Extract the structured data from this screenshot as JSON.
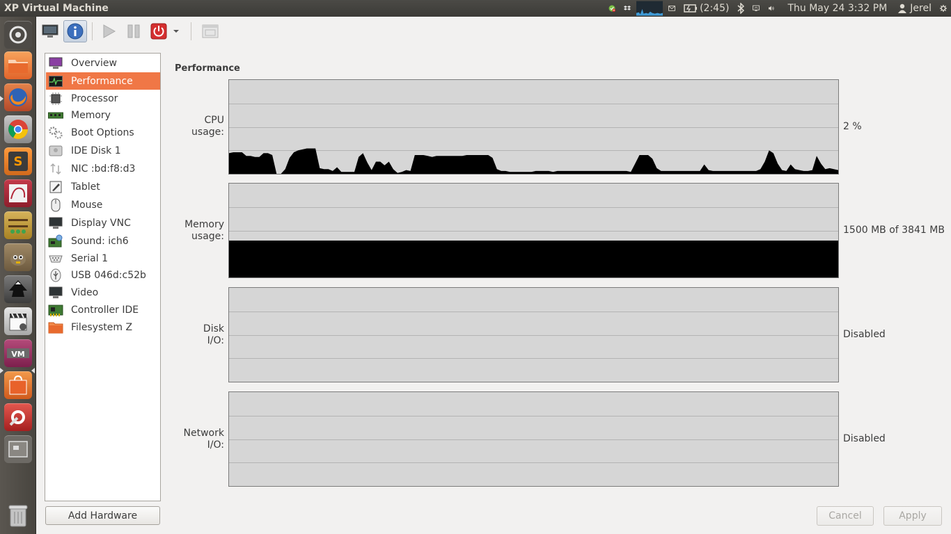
{
  "window": {
    "title": "XP Virtual Machine"
  },
  "panel": {
    "battery_text": "(2:45)",
    "clock": "Thu May 24  3:32 PM",
    "user": "Jerel",
    "icons": [
      "chat-status-icon",
      "dropbox-icon",
      "network-graph-icon",
      "mail-icon",
      "battery-icon",
      "bluetooth-icon",
      "display-icon",
      "volume-icon",
      "user-icon",
      "settings-gear-icon"
    ]
  },
  "launcher": {
    "items": [
      "dash-home",
      "files",
      "firefox",
      "chrome",
      "sublime-text",
      "mysql-workbench",
      "abacus-app",
      "gimp",
      "inkscape",
      "clapper-board",
      "virt-manager",
      "software-center",
      "system-settings",
      "workspace-switcher",
      "trash"
    ]
  },
  "toolbar": {
    "items": [
      "console-monitor",
      "details-info",
      "run-play",
      "pause",
      "shutdown-power",
      "shutdown-menu-arrow",
      "fullscreen"
    ]
  },
  "hardware": {
    "items": [
      {
        "label": "Overview",
        "icon": "overview-monitor-icon"
      },
      {
        "label": "Performance",
        "icon": "performance-graph-icon",
        "selected": true
      },
      {
        "label": "Processor",
        "icon": "processor-chip-icon"
      },
      {
        "label": "Memory",
        "icon": "memory-ram-icon"
      },
      {
        "label": "Boot Options",
        "icon": "boot-gears-icon"
      },
      {
        "label": "IDE Disk 1",
        "icon": "disk-drive-icon"
      },
      {
        "label": "NIC :bd:f8:d3",
        "icon": "network-arrows-icon"
      },
      {
        "label": "Tablet",
        "icon": "tablet-pen-icon"
      },
      {
        "label": "Mouse",
        "icon": "mouse-icon"
      },
      {
        "label": "Display VNC",
        "icon": "display-monitor-icon"
      },
      {
        "label": "Sound: ich6",
        "icon": "sound-card-icon"
      },
      {
        "label": "Serial 1",
        "icon": "serial-port-icon"
      },
      {
        "label": "USB 046d:c52b",
        "icon": "usb-icon"
      },
      {
        "label": "Video",
        "icon": "video-monitor-icon"
      },
      {
        "label": "Controller IDE",
        "icon": "controller-card-icon"
      },
      {
        "label": "Filesystem Z",
        "icon": "folder-icon"
      }
    ],
    "add_button": "Add Hardware"
  },
  "performance": {
    "title": "Performance",
    "graphs": [
      {
        "label_line1": "CPU",
        "label_line2": "usage:",
        "value": "2 %"
      },
      {
        "label_line1": "Memory",
        "label_line2": "usage:",
        "value": "1500 MB of 3841 MB",
        "fill_fraction": 0.39
      },
      {
        "label_line1": "Disk",
        "label_line2": "I/O:",
        "value": "Disabled"
      },
      {
        "label_line1": "Network",
        "label_line2": "I/O:",
        "value": "Disabled"
      }
    ],
    "cpu_history_percent": [
      22,
      23,
      23,
      23,
      19,
      19,
      18,
      18,
      22,
      22,
      20,
      0,
      0,
      5,
      17,
      23,
      25,
      26,
      27,
      27,
      27,
      6,
      5,
      5,
      3,
      7,
      2,
      2,
      2,
      2,
      18,
      22,
      12,
      4,
      13,
      13,
      9,
      13,
      5,
      1,
      2,
      4,
      3,
      20,
      20,
      20,
      19,
      18,
      19,
      19,
      19,
      19,
      19,
      19,
      19,
      20,
      20,
      20,
      20,
      20,
      20,
      17,
      5,
      3,
      3,
      2,
      2,
      2,
      2,
      2,
      2,
      3,
      3,
      3,
      3,
      2,
      3,
      3,
      3,
      3,
      3,
      3,
      3,
      3,
      3,
      3,
      3,
      3,
      3,
      3,
      3,
      3,
      3,
      2,
      11,
      20,
      20,
      20,
      16,
      6,
      3,
      3,
      3,
      3,
      3,
      3,
      3,
      3,
      3,
      3,
      10,
      4,
      3,
      3,
      3,
      3,
      3,
      3,
      3,
      3,
      3,
      3,
      3,
      5,
      13,
      25,
      22,
      11,
      4,
      3,
      10,
      5,
      4,
      3,
      3,
      4,
      19,
      11,
      5,
      6,
      5,
      4
    ]
  },
  "footer": {
    "cancel": "Cancel",
    "apply": "Apply"
  },
  "colors": {
    "selection": "#f07746",
    "graph_bg": "#d6d6d6",
    "graph_fill": "#000000",
    "panel": "#3c3b37",
    "launcher": "#4f4b46"
  }
}
